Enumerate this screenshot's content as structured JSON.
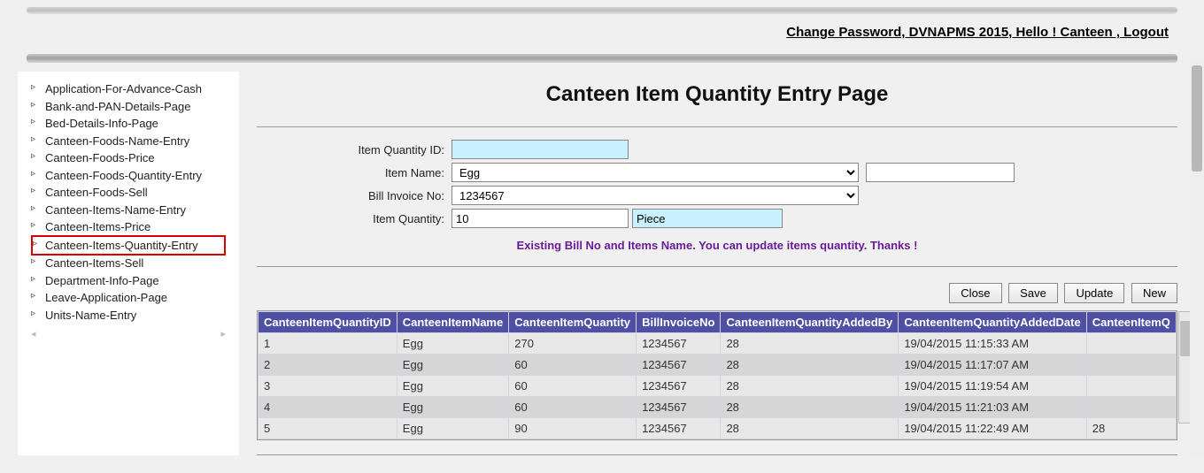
{
  "header": {
    "links_text": "Change Password, DVNAPMS 2015, Hello ! Canteen , Logout"
  },
  "sidebar": {
    "items": [
      {
        "label": "Application-For-Advance-Cash",
        "highlight": false
      },
      {
        "label": "Bank-and-PAN-Details-Page",
        "highlight": false
      },
      {
        "label": "Bed-Details-Info-Page",
        "highlight": false
      },
      {
        "label": "Canteen-Foods-Name-Entry",
        "highlight": false
      },
      {
        "label": "Canteen-Foods-Price",
        "highlight": false
      },
      {
        "label": "Canteen-Foods-Quantity-Entry",
        "highlight": false
      },
      {
        "label": "Canteen-Foods-Sell",
        "highlight": false
      },
      {
        "label": "Canteen-Items-Name-Entry",
        "highlight": false
      },
      {
        "label": "Canteen-Items-Price",
        "highlight": false
      },
      {
        "label": "Canteen-Items-Quantity-Entry",
        "highlight": true
      },
      {
        "label": "Canteen-Items-Sell",
        "highlight": false
      },
      {
        "label": "Department-Info-Page",
        "highlight": false
      },
      {
        "label": "Leave-Application-Page",
        "highlight": false
      },
      {
        "label": "Units-Name-Entry",
        "highlight": false
      }
    ]
  },
  "page": {
    "title": "Canteen Item Quantity Entry Page",
    "labels": {
      "item_quantity_id": "Item Quantity ID:",
      "item_name": "Item Name:",
      "bill_invoice_no": "Bill Invoice No:",
      "item_quantity": "Item Quantity:"
    },
    "fields": {
      "item_quantity_id": "",
      "item_name_selected": "Egg",
      "item_name_extra": "",
      "bill_invoice_selected": "1234567",
      "item_quantity": "10",
      "unit": "Piece"
    },
    "message": "Existing Bill No and Items Name. You can update items quantity. Thanks !",
    "buttons": {
      "close": "Close",
      "save": "Save",
      "update": "Update",
      "new": "New"
    }
  },
  "grid": {
    "columns": [
      "CanteenItemQuantityID",
      "CanteenItemName",
      "CanteenItemQuantity",
      "BillInvoiceNo",
      "CanteenItemQuantityAddedBy",
      "CanteenItemQuantityAddedDate",
      "CanteenItemQ"
    ],
    "rows": [
      [
        "1",
        "Egg",
        "270",
        "1234567",
        "28",
        "19/04/2015 11:15:33 AM",
        ""
      ],
      [
        "2",
        "Egg",
        "60",
        "1234567",
        "28",
        "19/04/2015 11:17:07 AM",
        ""
      ],
      [
        "3",
        "Egg",
        "60",
        "1234567",
        "28",
        "19/04/2015 11:19:54 AM",
        ""
      ],
      [
        "4",
        "Egg",
        "60",
        "1234567",
        "28",
        "19/04/2015 11:21:03 AM",
        ""
      ],
      [
        "5",
        "Egg",
        "90",
        "1234567",
        "28",
        "19/04/2015 11:22:49 AM",
        "28"
      ]
    ]
  },
  "colors": {
    "grid_header_bg": "#4f4fa3",
    "highlight_border": "#d80000",
    "readonly_bg": "#c9f0ff",
    "message_color": "#6a1b9a"
  }
}
